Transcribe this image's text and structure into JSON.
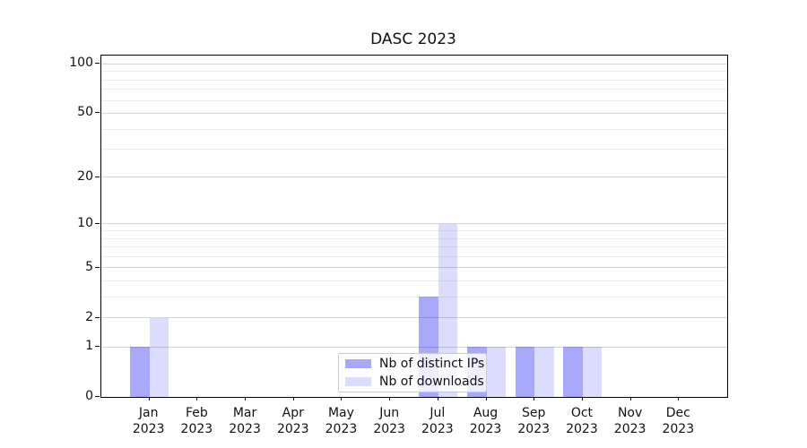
{
  "title": "DASC 2023",
  "legend": {
    "items": [
      {
        "label": "Nb of distinct IPs"
      },
      {
        "label": "Nb of downloads"
      }
    ]
  },
  "colors": {
    "bar_base_hex": "#0a0af5",
    "distinct_ips_fill": "rgba(10,10,245,0.35)",
    "downloads_fill": "rgba(10,10,245,0.14)",
    "distinct_ips_solid": "#a9a9f7",
    "downloads_solid": "#dcdcfa",
    "grid_major": "#d4d4d4",
    "grid_minor": "#ececec",
    "axis": "#000000",
    "text": "#111111"
  },
  "chart_data": {
    "type": "bar",
    "title": "DASC 2023",
    "categories": [
      "Jan 2023",
      "Feb 2023",
      "Mar 2023",
      "Apr 2023",
      "May 2023",
      "Jun 2023",
      "Jul 2023",
      "Aug 2023",
      "Sep 2023",
      "Oct 2023",
      "Nov 2023",
      "Dec 2023"
    ],
    "series": [
      {
        "name": "Nb of distinct IPs",
        "values": [
          1,
          0,
          0,
          0,
          0,
          0,
          3,
          1,
          1,
          1,
          0,
          0
        ]
      },
      {
        "name": "Nb of downloads",
        "values": [
          2,
          0,
          0,
          0,
          0,
          0,
          10,
          1,
          1,
          1,
          0,
          0
        ]
      }
    ],
    "yscale": "log1p",
    "ylim": [
      0,
      113
    ],
    "y_major_ticks": [
      0,
      1,
      2,
      5,
      10,
      20,
      50,
      100
    ],
    "y_minor_ticks": [
      3,
      4,
      6,
      7,
      8,
      9,
      30,
      40,
      60,
      70,
      80,
      90
    ],
    "grid": true,
    "legend_position": "inside lower-center"
  }
}
